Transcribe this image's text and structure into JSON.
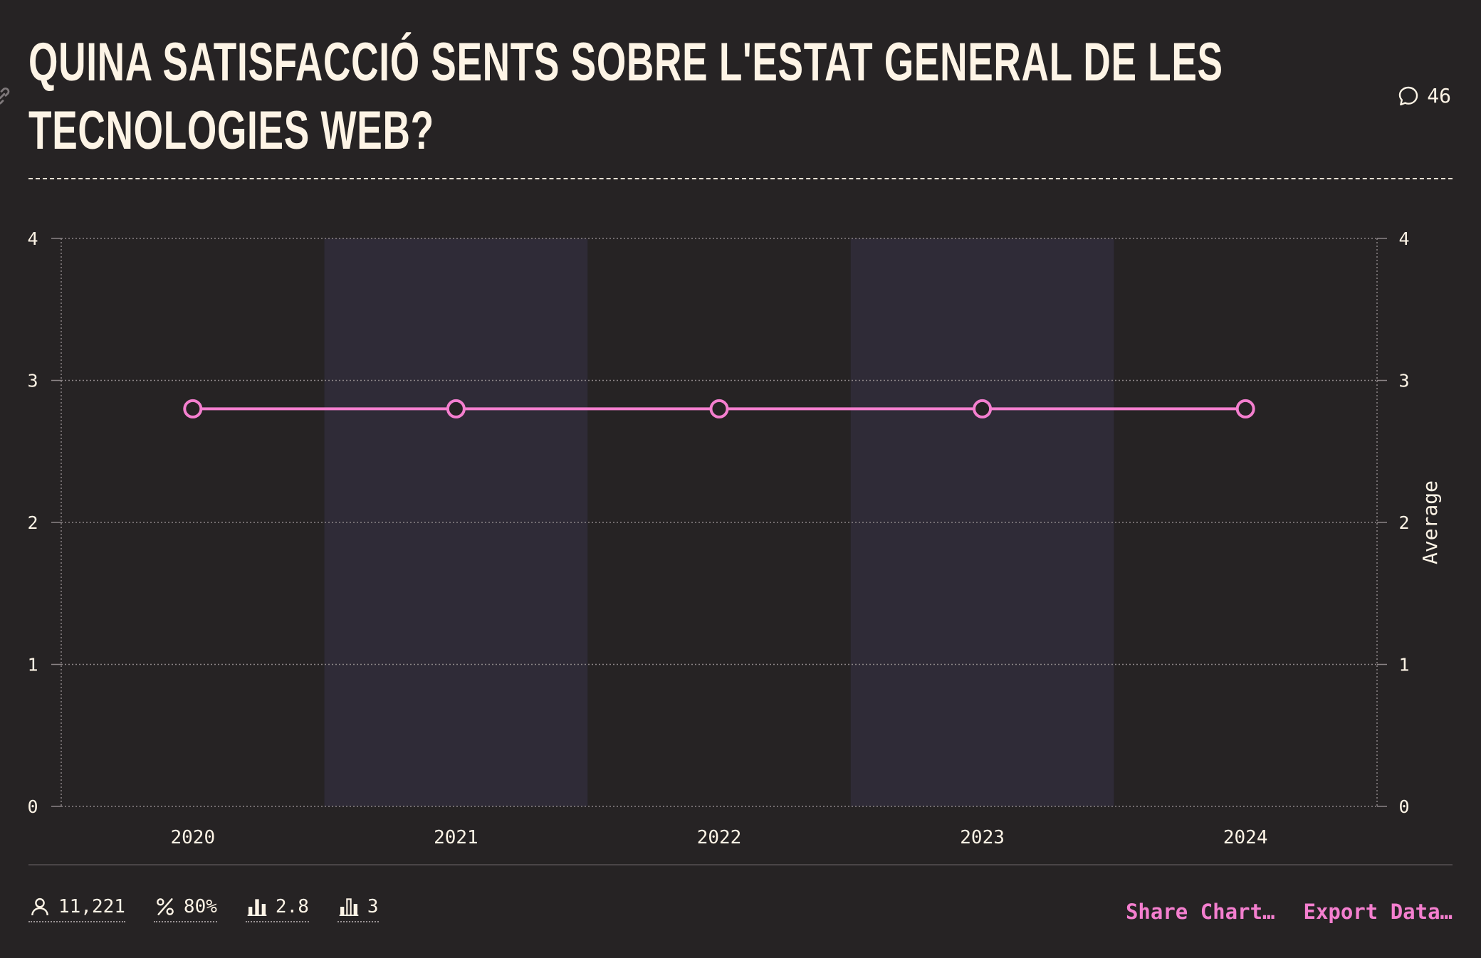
{
  "title_lines": [
    "QUINA SATISFACCIÓ SENTS SOBRE L'ESTAT GENERAL DE LES",
    "TECNOLOGIES WEB?"
  ],
  "comments_count": "46",
  "stats": {
    "respondents": "11,221",
    "percent": "80%",
    "average": "2.8",
    "median": "3"
  },
  "actions": {
    "share": "Share Chart…",
    "export": "Export Data…"
  },
  "colors": {
    "background": "#262324",
    "band": "#2f2b37",
    "series": "#f47fcf",
    "text": "#fdf4e6"
  },
  "chart_data": {
    "type": "line",
    "x": [
      "2020",
      "2021",
      "2022",
      "2023",
      "2024"
    ],
    "series": [
      {
        "values": [
          2.8,
          2.8,
          2.8,
          2.8,
          2.8
        ]
      }
    ],
    "ylabel_right": "Average",
    "yticks": [
      "0",
      "1",
      "2",
      "3",
      "4"
    ],
    "ylim": [
      0,
      4
    ],
    "grid": true,
    "alternating_bands": true
  }
}
